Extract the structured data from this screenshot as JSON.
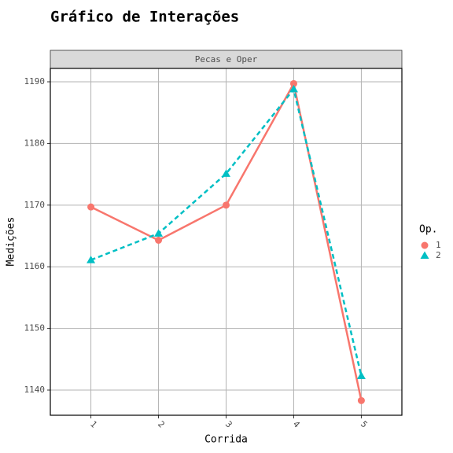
{
  "chart_data": {
    "type": "line",
    "title": "Gráfico de Interações",
    "facet_label": "Pecas e Oper",
    "x_label": "Corrida",
    "y_label": "Medições",
    "legend_title": "Op.",
    "categories": [
      "1",
      "2",
      "3",
      "4",
      "5"
    ],
    "series": [
      {
        "name": "1",
        "color": "#F8766D",
        "marker": "circle",
        "dash": "solid",
        "values": [
          1169.7,
          1164.3,
          1170.0,
          1189.7,
          1138.3
        ]
      },
      {
        "name": "2",
        "color": "#00BFC4",
        "marker": "triangle",
        "dash": "dashed",
        "values": [
          1161.1,
          1165.4,
          1175.1,
          1188.8,
          1142.3
        ]
      }
    ],
    "ylim": [
      1135.92,
      1192.17
    ],
    "yticks": [
      1140,
      1150,
      1160,
      1170,
      1180,
      1190
    ],
    "grid": true,
    "legend": "right"
  }
}
